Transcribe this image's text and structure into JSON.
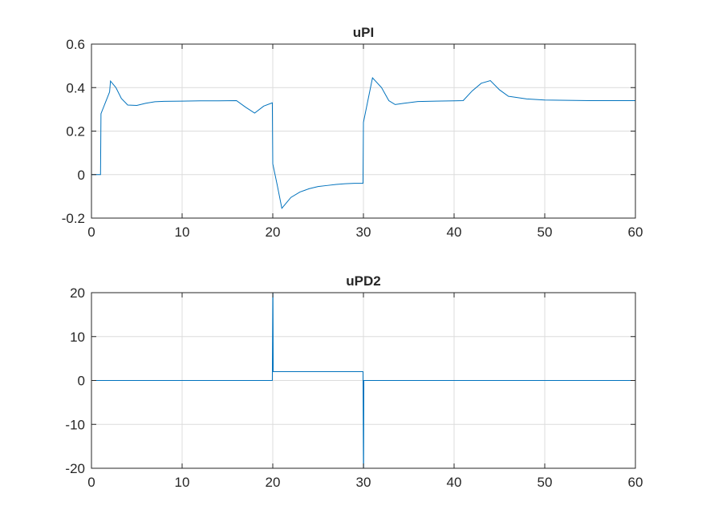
{
  "chart_data": [
    {
      "type": "line",
      "title": "uPI",
      "xlabel": "",
      "ylabel": "",
      "xlim": [
        0,
        60
      ],
      "ylim": [
        -0.2,
        0.6
      ],
      "x_ticks": [
        0,
        10,
        20,
        30,
        40,
        50,
        60
      ],
      "y_ticks": [
        -0.2,
        0,
        0.2,
        0.4,
        0.6
      ],
      "x_tick_labels": [
        "0",
        "10",
        "20",
        "30",
        "40",
        "50",
        "60"
      ],
      "y_tick_labels": [
        "-0.2",
        "0",
        "0.2",
        "0.4",
        "0.6"
      ],
      "grid": true,
      "color": "#0072bd",
      "series": [
        {
          "x": [
            0,
            1,
            1.05,
            2,
            2.1,
            2.7,
            3.3,
            4,
            5,
            6,
            7,
            8,
            10,
            12,
            14,
            16,
            17,
            18,
            19,
            19.95,
            20,
            20.5,
            21,
            22,
            23,
            24,
            25,
            26,
            27,
            28,
            29,
            29.95,
            30,
            31,
            32,
            32.8,
            33.5,
            34.5,
            36,
            38,
            40,
            41,
            42,
            43,
            44,
            45,
            46,
            48,
            50,
            55,
            60
          ],
          "y": [
            0,
            0,
            0.28,
            0.38,
            0.43,
            0.4,
            0.35,
            0.32,
            0.318,
            0.328,
            0.335,
            0.337,
            0.338,
            0.339,
            0.339,
            0.34,
            0.31,
            0.283,
            0.315,
            0.33,
            0.05,
            -0.05,
            -0.155,
            -0.105,
            -0.08,
            -0.065,
            -0.055,
            -0.05,
            -0.045,
            -0.042,
            -0.04,
            -0.04,
            0.24,
            0.445,
            0.4,
            0.34,
            0.322,
            0.328,
            0.336,
            0.338,
            0.339,
            0.34,
            0.385,
            0.42,
            0.432,
            0.39,
            0.36,
            0.348,
            0.343,
            0.34,
            0.34
          ]
        }
      ]
    },
    {
      "type": "line",
      "title": "uPD2",
      "xlabel": "",
      "ylabel": "",
      "xlim": [
        0,
        60
      ],
      "ylim": [
        -20,
        20
      ],
      "x_ticks": [
        0,
        10,
        20,
        30,
        40,
        50,
        60
      ],
      "y_ticks": [
        -20,
        -10,
        0,
        10,
        20
      ],
      "x_tick_labels": [
        "0",
        "10",
        "20",
        "30",
        "40",
        "50",
        "60"
      ],
      "y_tick_labels": [
        "-20",
        "-10",
        "0",
        "10",
        "20"
      ],
      "grid": true,
      "color": "#0072bd",
      "series": [
        {
          "x": [
            0,
            19.95,
            20,
            20.02,
            20.05,
            29.95,
            30,
            30.02,
            30.05,
            60
          ],
          "y": [
            0,
            0,
            20,
            20,
            2,
            2,
            -20,
            -20,
            0,
            0
          ]
        }
      ]
    }
  ]
}
